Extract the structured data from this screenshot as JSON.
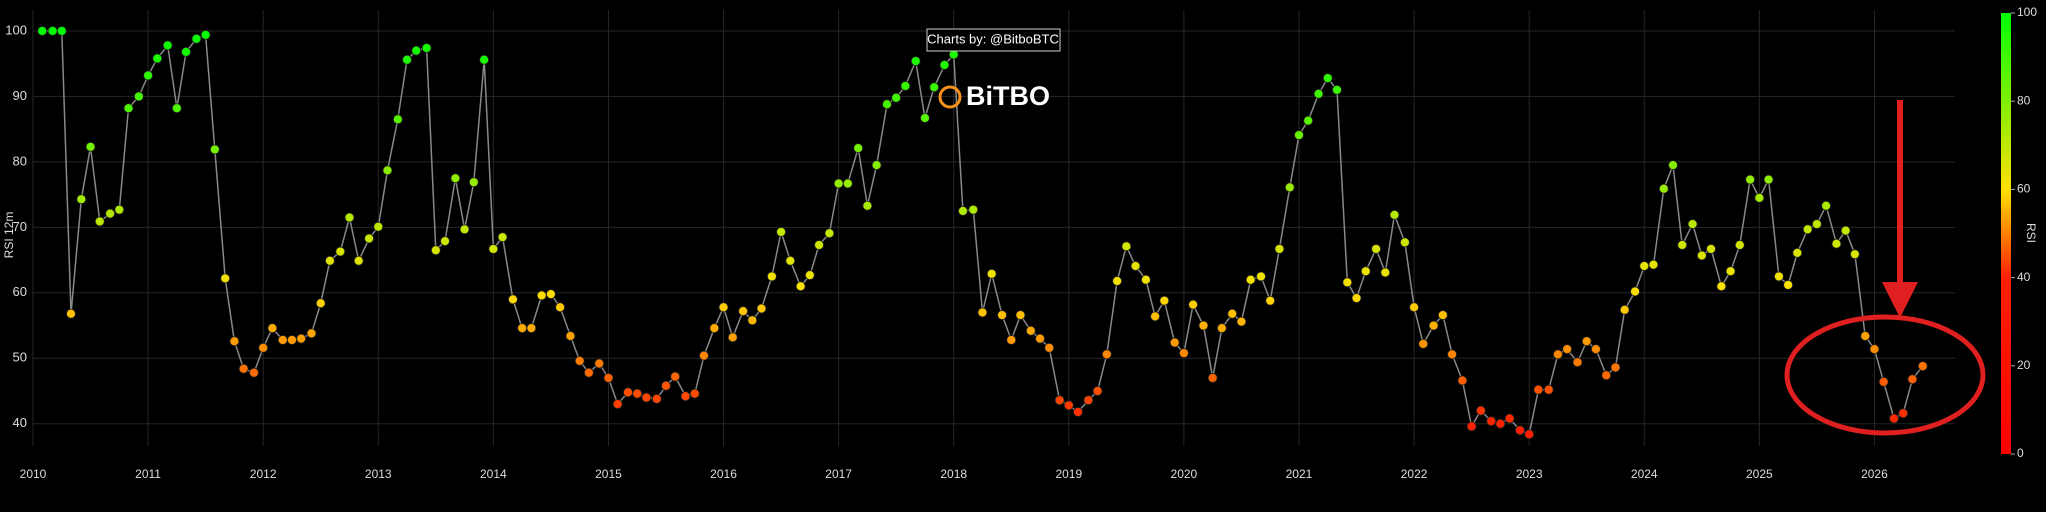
{
  "chart_data": {
    "type": "scatter-line",
    "watermark": "Charts by: @BitboBTC",
    "watermark_logo": "BiTBO",
    "y_label": "RSI 12m",
    "colorbar_label": "RSI",
    "line_color": "#888888",
    "grid": true,
    "colorscale": [
      [
        0,
        "#ff0000"
      ],
      [
        40,
        "#ff2000"
      ],
      [
        60,
        "#ffe000"
      ],
      [
        100,
        "#00ff00"
      ]
    ],
    "colorbar_ticks": [
      0,
      20,
      40,
      60,
      80,
      100
    ],
    "xlim": [
      2010,
      2026.7
    ],
    "xticks": [
      2010,
      2011,
      2012,
      2013,
      2014,
      2015,
      2016,
      2017,
      2018,
      2019,
      2020,
      2021,
      2022,
      2023,
      2024,
      2025,
      2026
    ],
    "ylim": [
      36.6,
      103.2
    ],
    "yticks": [
      40,
      50,
      60,
      70,
      80,
      90,
      100
    ],
    "x": [
      2010.08,
      2010.17,
      2010.25,
      2010.33,
      2010.42,
      2010.5,
      2010.58,
      2010.67,
      2010.75,
      2010.83,
      2010.92,
      2011,
      2011.08,
      2011.17,
      2011.25,
      2011.33,
      2011.42,
      2011.5,
      2011.58,
      2011.67,
      2011.75,
      2011.83,
      2011.92,
      2012,
      2012.08,
      2012.17,
      2012.25,
      2012.33,
      2012.42,
      2012.5,
      2012.58,
      2012.67,
      2012.75,
      2012.83,
      2012.92,
      2013,
      2013.08,
      2013.17,
      2013.25,
      2013.33,
      2013.42,
      2013.5,
      2013.58,
      2013.67,
      2013.75,
      2013.83,
      2013.92,
      2014,
      2014.08,
      2014.17,
      2014.25,
      2014.33,
      2014.42,
      2014.5,
      2014.58,
      2014.67,
      2014.75,
      2014.83,
      2014.92,
      2015,
      2015.08,
      2015.17,
      2015.25,
      2015.33,
      2015.42,
      2015.5,
      2015.58,
      2015.67,
      2015.75,
      2015.83,
      2015.92,
      2016,
      2016.08,
      2016.17,
      2016.25,
      2016.33,
      2016.42,
      2016.5,
      2016.58,
      2016.67,
      2016.75,
      2016.83,
      2016.92,
      2017,
      2017.08,
      2017.17,
      2017.25,
      2017.33,
      2017.42,
      2017.5,
      2017.58,
      2017.67,
      2017.75,
      2017.83,
      2017.92,
      2018,
      2018.08,
      2018.17,
      2018.25,
      2018.33,
      2018.42,
      2018.5,
      2018.58,
      2018.67,
      2018.75,
      2018.83,
      2018.92,
      2019,
      2019.08,
      2019.17,
      2019.25,
      2019.33,
      2019.42,
      2019.5,
      2019.58,
      2019.67,
      2019.75,
      2019.83,
      2019.92,
      2020,
      2020.08,
      2020.17,
      2020.25,
      2020.33,
      2020.42,
      2020.5,
      2020.58,
      2020.67,
      2020.75,
      2020.83,
      2020.92,
      2021,
      2021.08,
      2021.17,
      2021.25,
      2021.33,
      2021.42,
      2021.5,
      2021.58,
      2021.67,
      2021.75,
      2021.83,
      2021.92,
      2022,
      2022.08,
      2022.17,
      2022.25,
      2022.33,
      2022.42,
      2022.5,
      2022.58,
      2022.67,
      2022.75,
      2022.83,
      2022.92,
      2023,
      2023.08,
      2023.17,
      2023.25,
      2023.33,
      2023.42,
      2023.5,
      2023.58,
      2023.67,
      2023.75,
      2023.83,
      2023.92,
      2024,
      2024.08,
      2024.17,
      2024.25,
      2024.33,
      2024.42,
      2024.5,
      2024.58,
      2024.67,
      2024.75,
      2024.83,
      2024.92,
      2025,
      2025.08,
      2025.17,
      2025.25,
      2025.33,
      2025.42,
      2025.5,
      2025.58,
      2025.67,
      2025.75,
      2025.83,
      2025.92,
      2026,
      2026.08,
      2026.17,
      2026.25,
      2026.33,
      2026.42
    ],
    "values": [
      100,
      100,
      100,
      56.8,
      74.3,
      82.3,
      70.9,
      72.1,
      72.7,
      88.2,
      90,
      93.2,
      95.8,
      97.8,
      88.2,
      96.8,
      98.8,
      99.4,
      81.9,
      62.2,
      52.6,
      48.4,
      47.8,
      51.6,
      54.6,
      52.8,
      52.8,
      53,
      53.8,
      58.4,
      64.9,
      66.3,
      71.5,
      64.9,
      68.3,
      70.1,
      78.7,
      86.5,
      95.6,
      97,
      97.4,
      66.5,
      67.9,
      77.5,
      69.7,
      76.9,
      95.6,
      66.7,
      68.5,
      59,
      54.6,
      54.6,
      59.6,
      59.8,
      57.8,
      53.4,
      49.6,
      47.8,
      49.2,
      47,
      43,
      44.8,
      44.6,
      44,
      43.8,
      45.8,
      47.2,
      44.2,
      44.6,
      50.4,
      54.6,
      57.8,
      53.2,
      57.2,
      55.8,
      57.6,
      62.5,
      69.3,
      64.9,
      61,
      62.7,
      67.3,
      69.1,
      76.7,
      76.7,
      82.1,
      73.3,
      79.5,
      88.8,
      89.8,
      91.6,
      95.4,
      86.7,
      91.4,
      94.8,
      96.4,
      72.5,
      72.7,
      57,
      62.9,
      56.6,
      52.8,
      56.6,
      54.2,
      53,
      51.6,
      43.6,
      42.8,
      41.8,
      43.6,
      45,
      50.6,
      61.8,
      67.1,
      64.1,
      62,
      56.4,
      58.8,
      52.4,
      50.8,
      58.2,
      55,
      47,
      54.6,
      56.8,
      55.6,
      62,
      62.5,
      58.8,
      66.7,
      76.1,
      84.1,
      86.3,
      90.4,
      92.8,
      91,
      61.6,
      59.2,
      63.3,
      66.7,
      63.1,
      71.9,
      67.7,
      57.8,
      52.2,
      55,
      56.6,
      50.6,
      46.6,
      39.6,
      42,
      40.4,
      40,
      40.8,
      39,
      38.4,
      45.2,
      45.2,
      50.6,
      51.4,
      49.4,
      52.6,
      51.4,
      47.4,
      48.6,
      57.4,
      60.2,
      64.1,
      64.3,
      75.9,
      79.5,
      67.3,
      70.5,
      65.7,
      66.7,
      61,
      63.3,
      67.3,
      77.3,
      74.5,
      77.3,
      62.5,
      61.2,
      66.1,
      69.7,
      70.5,
      73.3,
      67.5,
      69.5,
      65.9,
      53.4,
      51.4,
      46.4,
      40.8,
      41.6,
      46.8,
      48.8
    ]
  }
}
